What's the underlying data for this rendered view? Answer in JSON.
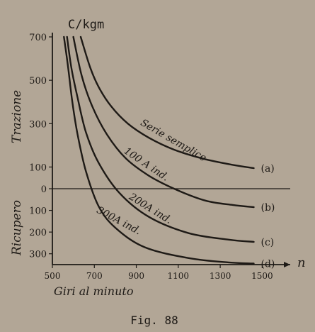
{
  "chart_data": {
    "type": "line",
    "ylabel": "C/kgm",
    "xlabel": "Giri al minuto",
    "x_axis_symbol": "n",
    "xlim": [
      500,
      1600
    ],
    "ylim": [
      -350,
      700
    ],
    "x_ticks": [
      500,
      700,
      900,
      1100,
      1300,
      1500
    ],
    "x_tick_labels": [
      "500",
      "700",
      "900",
      "1100",
      "1300",
      "1500"
    ],
    "y_ticks": [
      700,
      500,
      300,
      100,
      0,
      -100,
      -200,
      -300
    ],
    "y_tick_labels": [
      "700",
      "500",
      "300",
      "100",
      "0",
      "100",
      "200",
      "300"
    ],
    "region_labels": {
      "upper": "Trazione",
      "lower": "Ricupero"
    },
    "caption": "Fig. 88",
    "series": [
      {
        "name": "Serie semplice",
        "tag": "(a)",
        "x": [
          635,
          680,
          720,
          780,
          860,
          960,
          1080,
          1220,
          1360,
          1460
        ],
        "y": [
          700,
          560,
          470,
          380,
          300,
          235,
          180,
          138,
          110,
          95
        ]
      },
      {
        "name": "100 A ind.",
        "tag": "(b)",
        "x": [
          600,
          640,
          690,
          760,
          850,
          960,
          1080,
          1230,
          1360,
          1460
        ],
        "y": [
          700,
          520,
          380,
          250,
          140,
          60,
          0,
          -55,
          -75,
          -85
        ]
      },
      {
        "name": "200A ind.",
        "tag": "(c)",
        "x": [
          570,
          590,
          620,
          660,
          720,
          820,
          960,
          1150,
          1340,
          1460
        ],
        "y": [
          700,
          560,
          420,
          260,
          120,
          -20,
          -130,
          -205,
          -235,
          -245
        ]
      },
      {
        "name": "300A ind.",
        "tag": "(d)",
        "x": [
          555,
          575,
          595,
          620,
          660,
          720,
          800,
          940,
          1150,
          1340,
          1460
        ],
        "y": [
          700,
          560,
          400,
          250,
          80,
          -80,
          -180,
          -270,
          -320,
          -340,
          -345
        ]
      }
    ]
  }
}
